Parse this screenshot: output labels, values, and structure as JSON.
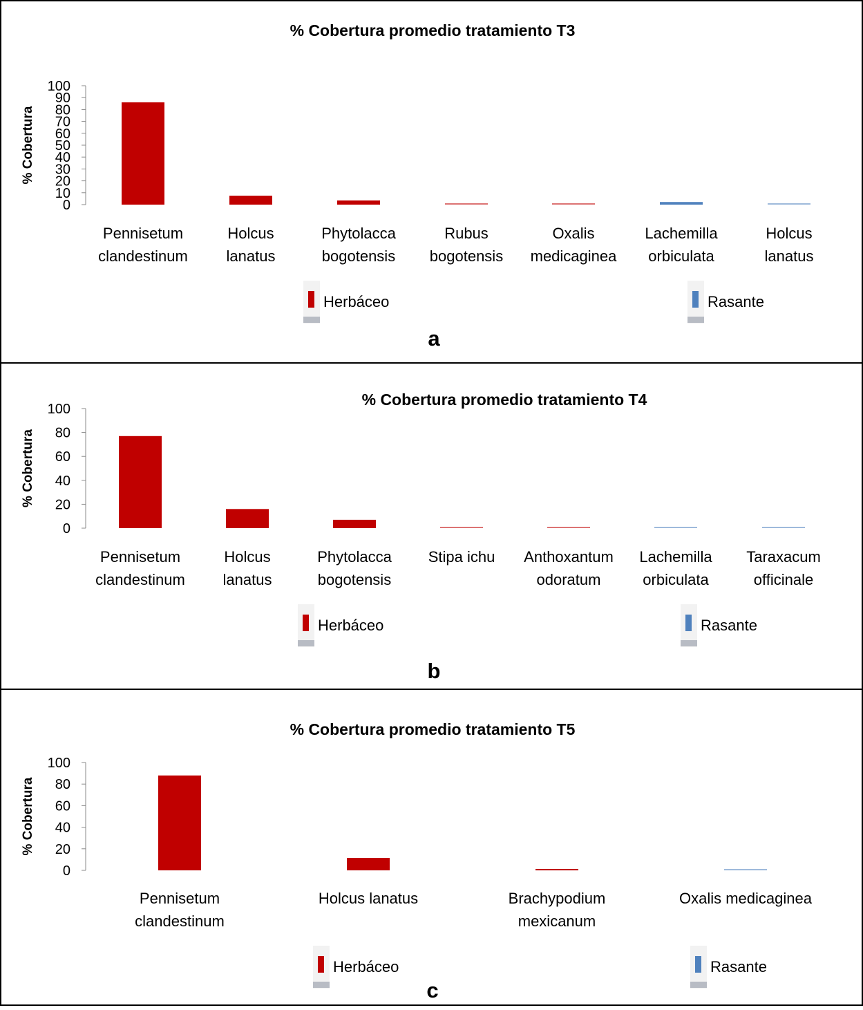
{
  "chart_data": [
    {
      "type": "bar",
      "title": "% Cobertura promedio tratamiento T3",
      "ylabel": "% Cobertura",
      "xlabel": "",
      "ylim": [
        0,
        100
      ],
      "yticks": [
        0,
        10,
        20,
        30,
        40,
        50,
        60,
        70,
        80,
        90,
        100
      ],
      "categories": [
        [
          "Pennisetum",
          "clandestinum"
        ],
        [
          "Holcus",
          "lanatus"
        ],
        [
          "Phytolacca",
          "bogotensis"
        ],
        [
          "Rubus",
          "bogotensis"
        ],
        [
          "Oxalis",
          "medicaginea"
        ],
        [
          "Lachemilla",
          "orbiculata"
        ],
        [
          "Holcus",
          "lanatus"
        ]
      ],
      "values": [
        86,
        7.5,
        3.5,
        0.8,
        0.5,
        2.2,
        0.8
      ],
      "groups": [
        "Herbáceo",
        "Herbáceo",
        "Herbáceo",
        "Herbáceo",
        "Herbáceo",
        "Rasante",
        "Rasante"
      ],
      "legend": [
        {
          "name": "Herbáceo",
          "color": "#c00000"
        },
        {
          "name": "Rasante",
          "color": "#4f81bd"
        }
      ],
      "panel_label": "a"
    },
    {
      "type": "bar",
      "title": "% Cobertura promedio tratamiento T4",
      "ylabel": "% Cobertura",
      "xlabel": "",
      "ylim": [
        0,
        100
      ],
      "yticks": [
        0,
        20,
        40,
        60,
        80,
        100
      ],
      "categories": [
        [
          "Pennisetum",
          "clandestinum"
        ],
        [
          "Holcus",
          "lanatus"
        ],
        [
          "Phytolacca",
          "bogotensis"
        ],
        [
          "Stipa ichu"
        ],
        [
          "Anthoxantum",
          "odoratum"
        ],
        [
          "Lachemilla",
          "orbiculata"
        ],
        [
          "Taraxacum",
          "officinale"
        ]
      ],
      "values": [
        77,
        16,
        7,
        0.8,
        0.6,
        0.5,
        0.3
      ],
      "groups": [
        "Herbáceo",
        "Herbáceo",
        "Herbáceo",
        "Herbáceo",
        "Herbáceo",
        "Rasante",
        "Rasante"
      ],
      "legend": [
        {
          "name": "Herbáceo",
          "color": "#c00000"
        },
        {
          "name": "Rasante",
          "color": "#4f81bd"
        }
      ],
      "panel_label": "b"
    },
    {
      "type": "bar",
      "title": "% Cobertura promedio tratamiento T5",
      "ylabel": "% Cobertura",
      "xlabel": "",
      "ylim": [
        0,
        100
      ],
      "yticks": [
        0,
        20,
        40,
        60,
        80,
        100
      ],
      "categories": [
        [
          "Pennisetum",
          "clandestinum"
        ],
        [
          "Holcus lanatus"
        ],
        [
          "Brachypodium",
          "mexicanum"
        ],
        [
          "Oxalis medicaginea"
        ]
      ],
      "values": [
        88,
        11.5,
        1,
        0.4
      ],
      "groups": [
        "Herbáceo",
        "Herbáceo",
        "Herbáceo",
        "Rasante"
      ],
      "legend": [
        {
          "name": "Herbáceo",
          "color": "#c00000"
        },
        {
          "name": "Rasante",
          "color": "#4f81bd"
        }
      ],
      "panel_label": "c"
    }
  ]
}
